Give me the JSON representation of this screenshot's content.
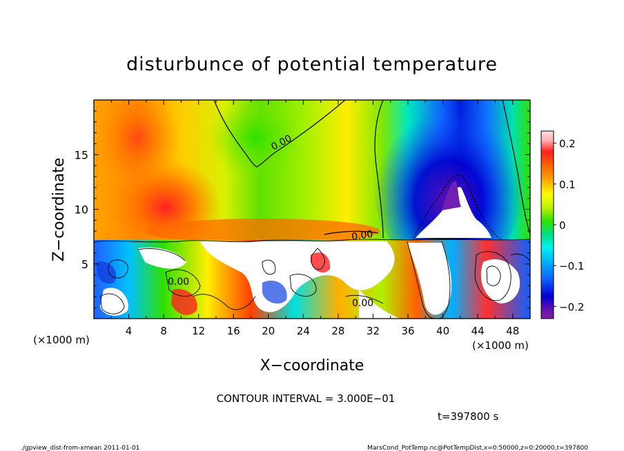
{
  "chart_data": {
    "type": "heatmap",
    "title": "disturbunce of potential temperature",
    "xlabel": "X−coordinate",
    "ylabel": "Z−coordinate",
    "x_unit_left": "(×1000 m)",
    "x_unit_right": "(×1000 m)",
    "xlim": [
      0,
      50
    ],
    "ylim": [
      0,
      20
    ],
    "x_ticks": [
      4,
      8,
      12,
      16,
      20,
      24,
      28,
      32,
      36,
      40,
      44,
      48
    ],
    "x_tick_labels": [
      "4",
      "8",
      "12",
      "16",
      "20",
      "24",
      "28",
      "32",
      "36",
      "40",
      "44",
      "48"
    ],
    "y_ticks": [
      5,
      10,
      15
    ],
    "y_tick_labels": [
      "5",
      "10",
      "15"
    ],
    "colorbar": {
      "range": [
        -0.23,
        0.23
      ],
      "ticks": [
        0.2,
        0.1,
        0,
        -0.1,
        -0.2
      ],
      "tick_labels": [
        "0.2",
        "0.1",
        "0",
        "−0.1",
        "−0.2"
      ]
    },
    "contour_labels": [
      {
        "text": "0.00",
        "x": 22.5,
        "z": 16.3
      },
      {
        "text": "0.00",
        "x": 31,
        "z": 7.6
      },
      {
        "text": "0.00",
        "x": 10,
        "z": 3.3
      },
      {
        "text": "0.00",
        "x": 31,
        "z": 1.4
      }
    ],
    "contour_interval": "CONTOUR INTERVAL = 3.000E−01",
    "time_label": "t=397800 s",
    "footer_left": "./gpview_dist-from-xmean   2011-01-01",
    "footer_right": "MarsCond_PotTemp.nc@PotTempDist,x=0:50000,z=0:20000,t=397800"
  },
  "colors": {
    "axis": "#000000",
    "contour": "#000000",
    "background": "#ffffff"
  }
}
